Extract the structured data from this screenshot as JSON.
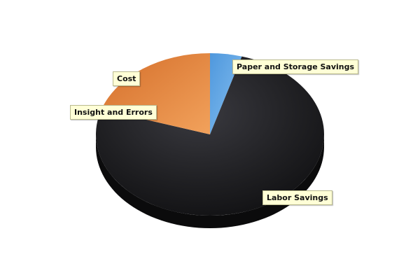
{
  "chart_data": {
    "type": "pie",
    "style": "3d",
    "title": "",
    "series": [
      {
        "slices": [
          {
            "label": "Paper and Storage Savings",
            "value": 4.5,
            "color": "#6aaeea"
          },
          {
            "label": "Labor Savings",
            "value": 75.5,
            "color": "#1c1c1e"
          },
          {
            "label": "Insight and Errors",
            "value": 0,
            "color": "#e07a30"
          },
          {
            "label": "Cost",
            "value": 20,
            "color": "#ee9a55"
          }
        ]
      }
    ],
    "legend": "none"
  }
}
